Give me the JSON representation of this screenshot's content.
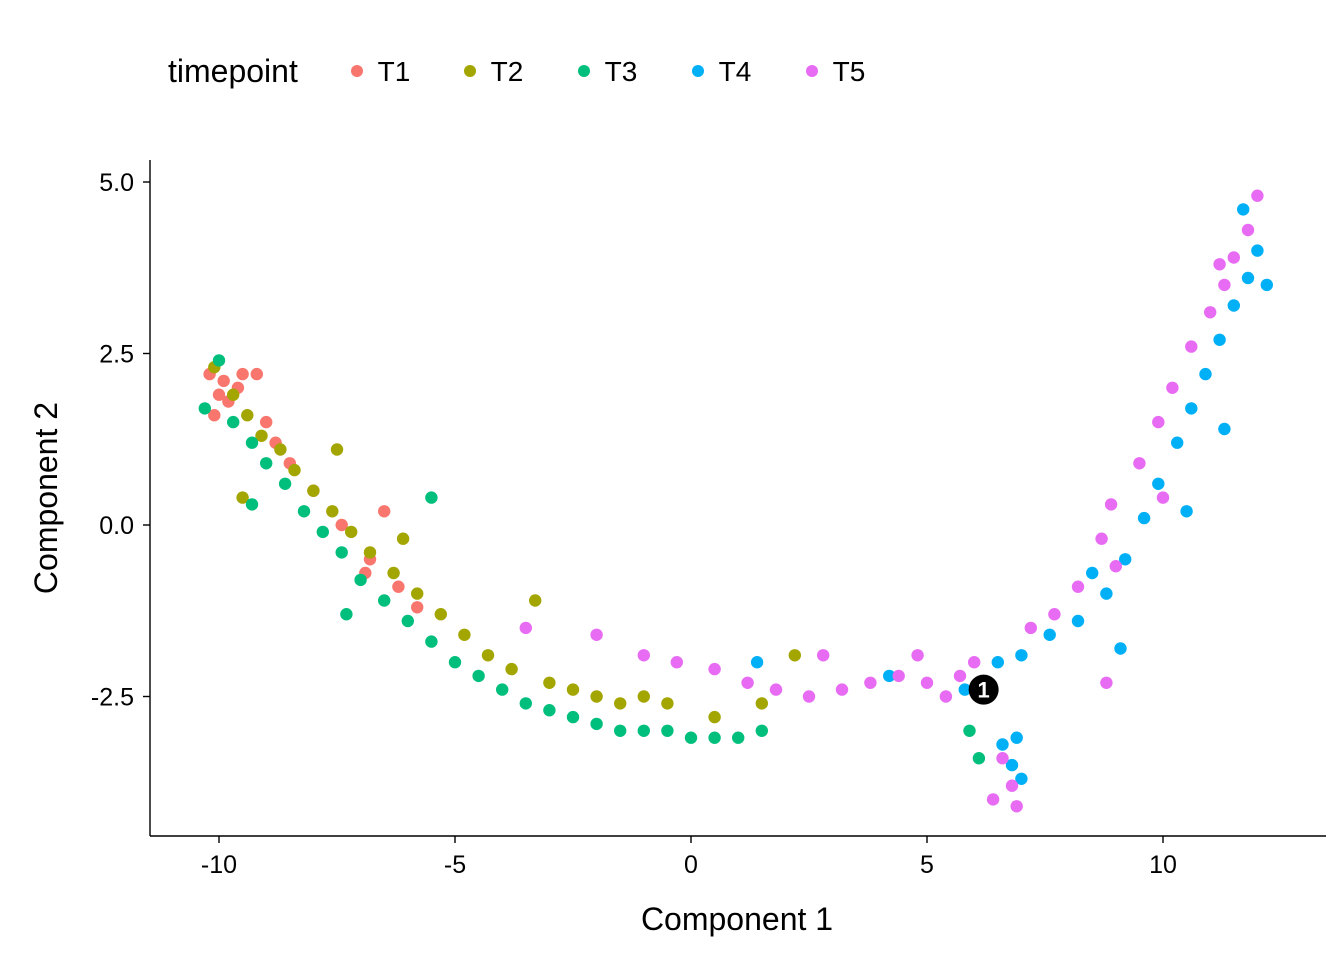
{
  "chart_data": {
    "type": "scatter",
    "title": "",
    "xlabel": "Component 1",
    "ylabel": "Component 2",
    "xlim": [
      -11.5,
      13.5
    ],
    "ylim": [
      -4.5,
      5.3
    ],
    "xticks": [
      -10,
      -5,
      0,
      5,
      10
    ],
    "xtick_labels": [
      "-10",
      "-5",
      "0",
      "5",
      "10"
    ],
    "yticks": [
      -2.5,
      0.0,
      2.5,
      5.0
    ],
    "ytick_labels": [
      "-2.5",
      "0.0",
      "2.5",
      "5.0"
    ],
    "grid": false,
    "legend": {
      "title": "timepoint",
      "position": "top",
      "entries": [
        {
          "label": "T1",
          "color": "#F8766D"
        },
        {
          "label": "T2",
          "color": "#A3A500"
        },
        {
          "label": "T3",
          "color": "#00BF7D"
        },
        {
          "label": "T4",
          "color": "#00B0F6"
        },
        {
          "label": "T5",
          "color": "#E76BF3"
        }
      ]
    },
    "series": [
      {
        "name": "T1",
        "color": "#F8766D",
        "points": [
          [
            -10.2,
            2.2
          ],
          [
            -10.0,
            1.9
          ],
          [
            -9.9,
            2.1
          ],
          [
            -10.1,
            1.6
          ],
          [
            -9.8,
            1.8
          ],
          [
            -9.6,
            2.0
          ],
          [
            -9.5,
            2.2
          ],
          [
            -9.2,
            2.2
          ],
          [
            -9.0,
            1.5
          ],
          [
            -8.8,
            1.2
          ],
          [
            -8.5,
            0.9
          ],
          [
            -8.0,
            0.5
          ],
          [
            -7.4,
            0.0
          ],
          [
            -6.8,
            -0.5
          ],
          [
            -6.2,
            -0.9
          ],
          [
            -5.8,
            -1.2
          ],
          [
            -6.5,
            0.2
          ],
          [
            -6.9,
            -0.7
          ]
        ]
      },
      {
        "name": "T2",
        "color": "#A3A500",
        "points": [
          [
            -10.1,
            2.3
          ],
          [
            -9.7,
            1.9
          ],
          [
            -9.4,
            1.6
          ],
          [
            -9.1,
            1.3
          ],
          [
            -8.7,
            1.1
          ],
          [
            -8.4,
            0.8
          ],
          [
            -8.0,
            0.5
          ],
          [
            -7.6,
            0.2
          ],
          [
            -7.2,
            -0.1
          ],
          [
            -6.8,
            -0.4
          ],
          [
            -6.3,
            -0.7
          ],
          [
            -5.8,
            -1.0
          ],
          [
            -5.3,
            -1.3
          ],
          [
            -4.8,
            -1.6
          ],
          [
            -4.3,
            -1.9
          ],
          [
            -3.8,
            -2.1
          ],
          [
            -3.3,
            -1.1
          ],
          [
            -3.0,
            -2.3
          ],
          [
            -2.5,
            -2.4
          ],
          [
            -2.0,
            -2.5
          ],
          [
            -1.5,
            -2.6
          ],
          [
            -1.0,
            -2.5
          ],
          [
            -0.5,
            -2.6
          ],
          [
            0.5,
            -2.8
          ],
          [
            1.5,
            -2.6
          ],
          [
            2.2,
            -1.9
          ],
          [
            -9.5,
            0.4
          ],
          [
            -7.5,
            1.1
          ],
          [
            -6.1,
            -0.2
          ]
        ]
      },
      {
        "name": "T3",
        "color": "#00BF7D",
        "points": [
          [
            -10.3,
            1.7
          ],
          [
            -10.0,
            2.4
          ],
          [
            -9.7,
            1.5
          ],
          [
            -9.3,
            1.2
          ],
          [
            -9.0,
            0.9
          ],
          [
            -8.6,
            0.6
          ],
          [
            -8.2,
            0.2
          ],
          [
            -7.8,
            -0.1
          ],
          [
            -7.4,
            -0.4
          ],
          [
            -7.0,
            -0.8
          ],
          [
            -6.5,
            -1.1
          ],
          [
            -6.0,
            -1.4
          ],
          [
            -5.5,
            -1.7
          ],
          [
            -5.0,
            -2.0
          ],
          [
            -4.5,
            -2.2
          ],
          [
            -4.0,
            -2.4
          ],
          [
            -3.5,
            -2.6
          ],
          [
            -3.0,
            -2.7
          ],
          [
            -2.5,
            -2.8
          ],
          [
            -2.0,
            -2.9
          ],
          [
            -1.5,
            -3.0
          ],
          [
            -1.0,
            -3.0
          ],
          [
            -0.5,
            -3.0
          ],
          [
            0.0,
            -3.1
          ],
          [
            0.5,
            -3.1
          ],
          [
            1.0,
            -3.1
          ],
          [
            1.5,
            -3.0
          ],
          [
            -5.5,
            0.4
          ],
          [
            -9.3,
            0.3
          ],
          [
            -7.3,
            -1.3
          ],
          [
            5.9,
            -3.0
          ],
          [
            6.1,
            -3.4
          ]
        ]
      },
      {
        "name": "T4",
        "color": "#00B0F6",
        "points": [
          [
            1.4,
            -2.0
          ],
          [
            4.2,
            -2.2
          ],
          [
            5.8,
            -2.4
          ],
          [
            6.5,
            -2.0
          ],
          [
            7.0,
            -1.9
          ],
          [
            7.6,
            -1.6
          ],
          [
            8.2,
            -1.4
          ],
          [
            8.8,
            -1.0
          ],
          [
            9.2,
            -0.5
          ],
          [
            9.6,
            0.1
          ],
          [
            9.9,
            0.6
          ],
          [
            10.3,
            1.2
          ],
          [
            10.6,
            1.7
          ],
          [
            10.9,
            2.2
          ],
          [
            11.2,
            2.7
          ],
          [
            11.5,
            3.2
          ],
          [
            11.8,
            3.6
          ],
          [
            12.0,
            4.0
          ],
          [
            12.2,
            3.5
          ],
          [
            11.7,
            4.6
          ],
          [
            6.6,
            -3.2
          ],
          [
            6.8,
            -3.5
          ],
          [
            7.0,
            -3.7
          ],
          [
            6.9,
            -3.1
          ],
          [
            9.1,
            -1.8
          ],
          [
            8.5,
            -0.7
          ],
          [
            10.5,
            0.2
          ],
          [
            11.3,
            1.4
          ]
        ]
      },
      {
        "name": "T5",
        "color": "#E76BF3",
        "points": [
          [
            -2.0,
            -1.6
          ],
          [
            -1.0,
            -1.9
          ],
          [
            -0.3,
            -2.0
          ],
          [
            0.5,
            -2.1
          ],
          [
            1.2,
            -2.3
          ],
          [
            1.8,
            -2.4
          ],
          [
            2.5,
            -2.5
          ],
          [
            3.2,
            -2.4
          ],
          [
            3.8,
            -2.3
          ],
          [
            4.4,
            -2.2
          ],
          [
            5.0,
            -2.3
          ],
          [
            5.4,
            -2.5
          ],
          [
            5.7,
            -2.2
          ],
          [
            6.0,
            -2.0
          ],
          [
            6.3,
            -2.4
          ],
          [
            6.6,
            -3.4
          ],
          [
            6.8,
            -3.8
          ],
          [
            6.4,
            -4.0
          ],
          [
            6.9,
            -4.1
          ],
          [
            7.2,
            -1.5
          ],
          [
            7.7,
            -1.3
          ],
          [
            8.2,
            -0.9
          ],
          [
            8.7,
            -0.2
          ],
          [
            8.9,
            0.3
          ],
          [
            9.0,
            -0.6
          ],
          [
            9.5,
            0.9
          ],
          [
            9.9,
            1.5
          ],
          [
            10.2,
            2.0
          ],
          [
            10.6,
            2.6
          ],
          [
            11.0,
            3.1
          ],
          [
            11.3,
            3.5
          ],
          [
            11.5,
            3.9
          ],
          [
            11.8,
            4.3
          ],
          [
            12.0,
            4.8
          ],
          [
            11.2,
            3.8
          ],
          [
            8.8,
            -2.3
          ],
          [
            -3.5,
            -1.5
          ],
          [
            2.8,
            -1.9
          ],
          [
            4.8,
            -1.9
          ],
          [
            10.0,
            0.4
          ]
        ]
      }
    ],
    "annotations": [
      {
        "label": "1",
        "x": 6.2,
        "y": -2.4,
        "shape": "filled-circle",
        "color": "#000000",
        "text_color": "#ffffff"
      }
    ]
  }
}
